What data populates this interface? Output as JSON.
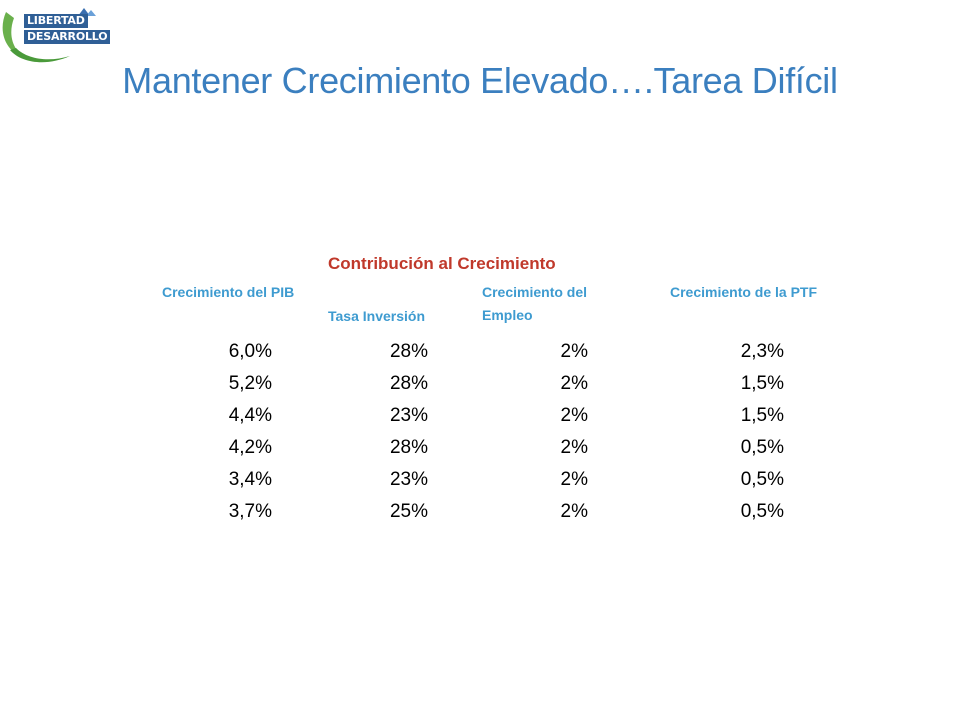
{
  "logo": {
    "line1": "LIBERTAD",
    "line2": "DESARROLLO"
  },
  "title": "Mantener Crecimiento Elevado….Tarea Difícil",
  "table": {
    "group_header": "Contribución al Crecimiento",
    "headers": {
      "pib": "Crecimiento del PIB",
      "inversion": "Tasa Inversión",
      "empleo": "Crecimiento del Empleo",
      "ptf": "Crecimiento de la PTF"
    },
    "rows": [
      {
        "pib": "6,0%",
        "inversion": "28%",
        "empleo": "2%",
        "ptf": "2,3%"
      },
      {
        "pib": "5,2%",
        "inversion": "28%",
        "empleo": "2%",
        "ptf": "1,5%"
      },
      {
        "pib": "4,4%",
        "inversion": "23%",
        "empleo": "2%",
        "ptf": "1,5%"
      },
      {
        "pib": "4,2%",
        "inversion": "28%",
        "empleo": "2%",
        "ptf": "0,5%"
      },
      {
        "pib": "3,4%",
        "inversion": "23%",
        "empleo": "2%",
        "ptf": "0,5%"
      },
      {
        "pib": "3,7%",
        "inversion": "25%",
        "empleo": "2%",
        "ptf": "0,5%"
      }
    ]
  }
}
